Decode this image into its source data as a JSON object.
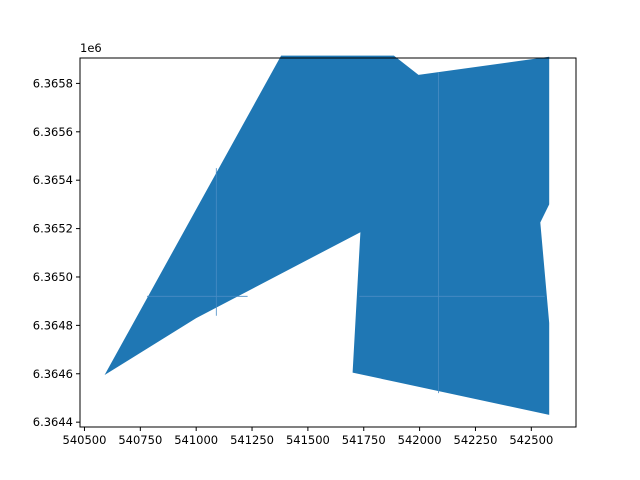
{
  "chart_data": {
    "type": "area",
    "title": "",
    "xlabel": "",
    "ylabel": "",
    "y_offset_label": "1e6",
    "xlim": [
      540480,
      542700
    ],
    "ylim": [
      6364380,
      6365905
    ],
    "x_ticks": [
      540500,
      540750,
      541000,
      541250,
      541500,
      541750,
      542000,
      542250,
      542500
    ],
    "x_tick_labels": [
      "540500",
      "540750",
      "541000",
      "541250",
      "541500",
      "541750",
      "542000",
      "542250",
      "542500"
    ],
    "y_ticks": [
      6364400,
      6364600,
      6364800,
      6365000,
      6365200,
      6365400,
      6365600,
      6365800
    ],
    "y_tick_labels": [
      "6.3644",
      "6.3646",
      "6.3648",
      "6.3650",
      "6.3652",
      "6.3654",
      "6.3656",
      "6.3658"
    ],
    "grid": false,
    "fill_color": "#1f77b4",
    "internal_edge_color": "#4a8cc4",
    "polygon": [
      [
        540590,
        6364595
      ],
      [
        541380,
        6365915
      ],
      [
        541885,
        6365915
      ],
      [
        541995,
        6365835
      ],
      [
        542580,
        6365910
      ],
      [
        542580,
        6365300
      ],
      [
        542540,
        6365225
      ],
      [
        542580,
        6364810
      ],
      [
        542580,
        6364430
      ],
      [
        541700,
        6364605
      ],
      [
        541735,
        6365185
      ],
      [
        541000,
        6364830
      ]
    ],
    "internal_edges": [
      [
        [
          541090,
          6365450
        ],
        [
          541090,
          6364840
        ]
      ],
      [
        [
          542085,
          6365845
        ],
        [
          542085,
          6364520
        ]
      ],
      [
        [
          540780,
          6364920
        ],
        [
          541230,
          6364920
        ]
      ],
      [
        [
          541730,
          6364920
        ],
        [
          542560,
          6364920
        ]
      ]
    ]
  }
}
